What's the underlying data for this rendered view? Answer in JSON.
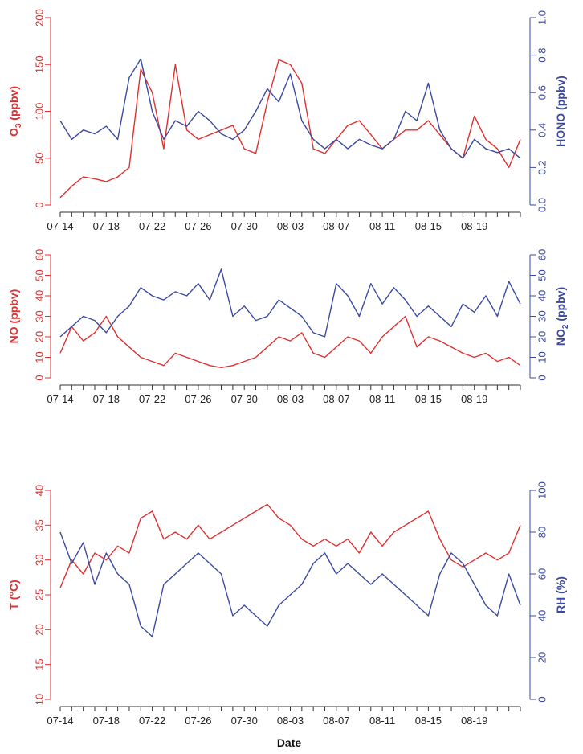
{
  "figure": {
    "xlabel": "Date"
  },
  "colors": {
    "left": "#e03030",
    "right": "#3b4aa0",
    "axis": "#333333"
  },
  "chart_data": [
    {
      "type": "line",
      "title": "",
      "xlabel": "Date",
      "x_tick_labels": [
        "07-14",
        "07-18",
        "07-22",
        "07-26",
        "07-30",
        "08-03",
        "08-07",
        "08-11",
        "08-15",
        "08-19"
      ],
      "x_tick_days": [
        0,
        4,
        8,
        12,
        16,
        20,
        24,
        28,
        32,
        36
      ],
      "x_range_days": [
        0,
        40
      ],
      "left_axis": {
        "label": "O3 (ppbv)",
        "label_main": "O",
        "label_sub": "3",
        "label_rest": " (ppbv)",
        "ylim": [
          0,
          200
        ],
        "ticks": [
          "0",
          "50",
          "100",
          "150",
          "200"
        ],
        "color": "#e03030"
      },
      "right_axis": {
        "label": "HONO (ppbv)",
        "ylim": [
          0,
          1
        ],
        "ticks": [
          "0.0",
          "0.2",
          "0.4",
          "0.6",
          "0.8",
          "1.0"
        ],
        "color": "#3b4aa0"
      },
      "series": [
        {
          "name": "O3",
          "axis": "left",
          "color": "#e03030",
          "x": [
            0,
            1,
            2,
            3,
            4,
            5,
            6,
            7,
            8,
            9,
            10,
            11,
            12,
            13,
            14,
            15,
            16,
            17,
            18,
            19,
            20,
            21,
            22,
            23,
            24,
            25,
            26,
            27,
            28,
            29,
            30,
            31,
            32,
            33,
            34,
            35,
            36,
            37,
            38,
            39,
            40
          ],
          "y": [
            8,
            20,
            30,
            28,
            25,
            30,
            40,
            145,
            120,
            60,
            150,
            80,
            70,
            75,
            80,
            85,
            60,
            55,
            110,
            155,
            150,
            130,
            60,
            55,
            70,
            85,
            90,
            75,
            60,
            70,
            80,
            80,
            90,
            75,
            60,
            50,
            95,
            70,
            60,
            40,
            70
          ]
        },
        {
          "name": "HONO",
          "axis": "right",
          "color": "#3b4aa0",
          "x": [
            0,
            1,
            2,
            3,
            4,
            5,
            6,
            7,
            8,
            9,
            10,
            11,
            12,
            13,
            14,
            15,
            16,
            17,
            18,
            19,
            20,
            21,
            22,
            23,
            24,
            25,
            26,
            27,
            28,
            29,
            30,
            31,
            32,
            33,
            34,
            35,
            36,
            37,
            38,
            39,
            40
          ],
          "y": [
            0.45,
            0.35,
            0.4,
            0.38,
            0.42,
            0.35,
            0.68,
            0.78,
            0.5,
            0.35,
            0.45,
            0.42,
            0.5,
            0.45,
            0.38,
            0.35,
            0.4,
            0.5,
            0.62,
            0.55,
            0.7,
            0.45,
            0.35,
            0.3,
            0.35,
            0.3,
            0.35,
            0.32,
            0.3,
            0.35,
            0.5,
            0.45,
            0.65,
            0.4,
            0.3,
            0.25,
            0.35,
            0.3,
            0.28,
            0.3,
            0.25
          ]
        }
      ]
    },
    {
      "type": "line",
      "title": "",
      "xlabel": "Date",
      "x_tick_labels": [
        "07-14",
        "07-18",
        "07-22",
        "07-26",
        "07-30",
        "08-03",
        "08-07",
        "08-11",
        "08-15",
        "08-19"
      ],
      "x_tick_days": [
        0,
        4,
        8,
        12,
        16,
        20,
        24,
        28,
        32,
        36
      ],
      "x_range_days": [
        0,
        40
      ],
      "left_axis": {
        "label": "NO (ppbv)",
        "label_main": "NO (ppbv)",
        "label_sub": "",
        "label_rest": "",
        "ylim": [
          0,
          60
        ],
        "ticks": [
          "0",
          "10",
          "20",
          "30",
          "40",
          "50",
          "60"
        ],
        "color": "#e03030"
      },
      "right_axis": {
        "label": "NO2 (ppbv)",
        "label_main": "NO",
        "label_sub": "2",
        "label_rest": " (ppbv)",
        "ylim": [
          0,
          60
        ],
        "ticks": [
          "0",
          "10",
          "20",
          "30",
          "40",
          "50",
          "60"
        ],
        "color": "#3b4aa0"
      },
      "series": [
        {
          "name": "NO",
          "axis": "left",
          "color": "#e03030",
          "x": [
            0,
            1,
            2,
            3,
            4,
            5,
            6,
            7,
            8,
            9,
            10,
            11,
            12,
            13,
            14,
            15,
            16,
            17,
            18,
            19,
            20,
            21,
            22,
            23,
            24,
            25,
            26,
            27,
            28,
            29,
            30,
            31,
            32,
            33,
            34,
            35,
            36,
            37,
            38,
            39,
            40
          ],
          "y": [
            12,
            25,
            18,
            22,
            30,
            20,
            15,
            10,
            8,
            6,
            12,
            10,
            8,
            6,
            5,
            6,
            8,
            10,
            15,
            20,
            18,
            22,
            12,
            10,
            15,
            20,
            18,
            12,
            20,
            25,
            30,
            15,
            20,
            18,
            15,
            12,
            10,
            12,
            8,
            10,
            6
          ]
        },
        {
          "name": "NO2",
          "axis": "right",
          "color": "#3b4aa0",
          "x": [
            0,
            1,
            2,
            3,
            4,
            5,
            6,
            7,
            8,
            9,
            10,
            11,
            12,
            13,
            14,
            15,
            16,
            17,
            18,
            19,
            20,
            21,
            22,
            23,
            24,
            25,
            26,
            27,
            28,
            29,
            30,
            31,
            32,
            33,
            34,
            35,
            36,
            37,
            38,
            39,
            40
          ],
          "y": [
            20,
            25,
            30,
            28,
            22,
            30,
            35,
            44,
            40,
            38,
            42,
            40,
            46,
            38,
            53,
            30,
            35,
            28,
            30,
            38,
            34,
            30,
            22,
            20,
            46,
            40,
            30,
            46,
            36,
            44,
            38,
            30,
            35,
            30,
            25,
            36,
            32,
            40,
            30,
            47,
            36
          ]
        }
      ]
    },
    {
      "type": "line",
      "title": "",
      "xlabel": "Date",
      "x_tick_labels": [
        "07-14",
        "07-18",
        "07-22",
        "07-26",
        "07-30",
        "08-03",
        "08-07",
        "08-11",
        "08-15",
        "08-19"
      ],
      "x_tick_days": [
        0,
        4,
        8,
        12,
        16,
        20,
        24,
        28,
        32,
        36
      ],
      "x_range_days": [
        0,
        40
      ],
      "left_axis": {
        "label": "T (°C)",
        "label_main": "T (°C)",
        "label_sub": "",
        "label_rest": "",
        "ylim": [
          10,
          40
        ],
        "ticks": [
          "10",
          "15",
          "20",
          "25",
          "30",
          "35",
          "40"
        ],
        "color": "#e03030"
      },
      "right_axis": {
        "label": "RH (%)",
        "label_main": "RH (%)",
        "label_sub": "",
        "label_rest": "",
        "ylim": [
          0,
          100
        ],
        "ticks": [
          "0",
          "20",
          "40",
          "60",
          "80",
          "100"
        ],
        "color": "#3b4aa0"
      },
      "series": [
        {
          "name": "T",
          "axis": "left",
          "color": "#e03030",
          "x": [
            0,
            1,
            2,
            3,
            4,
            5,
            6,
            7,
            8,
            9,
            10,
            11,
            12,
            13,
            14,
            15,
            16,
            17,
            18,
            19,
            20,
            21,
            22,
            23,
            24,
            25,
            26,
            27,
            28,
            29,
            30,
            31,
            32,
            33,
            34,
            35,
            36,
            37,
            38,
            39,
            40
          ],
          "y": [
            26,
            30,
            28,
            31,
            30,
            32,
            31,
            36,
            37,
            33,
            34,
            33,
            35,
            33,
            34,
            35,
            36,
            37,
            38,
            36,
            35,
            33,
            32,
            33,
            32,
            33,
            31,
            34,
            32,
            34,
            35,
            36,
            37,
            33,
            30,
            29,
            30,
            31,
            30,
            31,
            35
          ]
        },
        {
          "name": "RH",
          "axis": "right",
          "color": "#3b4aa0",
          "x": [
            0,
            1,
            2,
            3,
            4,
            5,
            6,
            7,
            8,
            9,
            10,
            11,
            12,
            13,
            14,
            15,
            16,
            17,
            18,
            19,
            20,
            21,
            22,
            23,
            24,
            25,
            26,
            27,
            28,
            29,
            30,
            31,
            32,
            33,
            34,
            35,
            36,
            37,
            38,
            39,
            40
          ],
          "y": [
            80,
            65,
            75,
            55,
            70,
            60,
            55,
            35,
            30,
            55,
            60,
            65,
            70,
            65,
            60,
            40,
            45,
            40,
            35,
            45,
            50,
            55,
            65,
            70,
            60,
            65,
            60,
            55,
            60,
            55,
            50,
            45,
            40,
            60,
            70,
            65,
            55,
            45,
            40,
            60,
            45
          ]
        }
      ]
    }
  ]
}
